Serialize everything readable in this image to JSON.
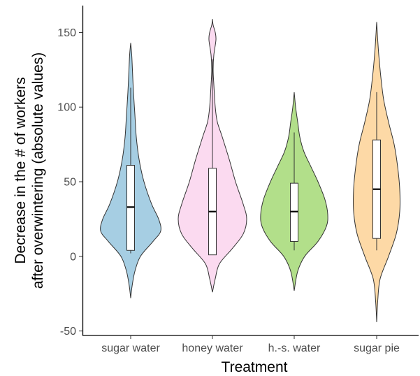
{
  "chart_data": {
    "type": "violin",
    "title": "",
    "xlabel": "Treatment",
    "ylabel_line1": "Decrease in the # of workers",
    "ylabel_line2": "after overwintering (absolute values)",
    "ylim": [
      -53,
      168
    ],
    "yticks": [
      -50,
      0,
      50,
      100,
      150
    ],
    "ytick_labels": [
      "-50",
      "0",
      "50",
      "100",
      "150"
    ],
    "legend": "none",
    "grid": false,
    "categories": [
      "sugar water",
      "honey water",
      "h.-s. water",
      "sugar pie"
    ],
    "series": [
      {
        "category": "sugar water",
        "color": "#a6cee3",
        "density": [
          [
            -28,
            0
          ],
          [
            -20,
            2
          ],
          [
            -10,
            6
          ],
          [
            0,
            14
          ],
          [
            10,
            32
          ],
          [
            17,
            43
          ],
          [
            25,
            40
          ],
          [
            35,
            30
          ],
          [
            50,
            19
          ],
          [
            65,
            12
          ],
          [
            80,
            8
          ],
          [
            95,
            6
          ],
          [
            110,
            4
          ],
          [
            125,
            2.5
          ],
          [
            135,
            1.5
          ],
          [
            143,
            0
          ]
        ],
        "box": {
          "q1": 4,
          "median": 33,
          "q3": 61,
          "whisker_low": 2,
          "whisker_high": 113
        }
      },
      {
        "category": "honey water",
        "color": "#fbdaf0",
        "density": [
          [
            -24,
            0
          ],
          [
            -15,
            4
          ],
          [
            -5,
            10
          ],
          [
            5,
            28
          ],
          [
            15,
            44
          ],
          [
            25,
            49
          ],
          [
            35,
            44
          ],
          [
            50,
            33
          ],
          [
            65,
            24
          ],
          [
            80,
            14
          ],
          [
            90,
            7
          ],
          [
            100,
            4
          ],
          [
            115,
            2
          ],
          [
            125,
            1
          ],
          [
            135,
            2
          ],
          [
            145,
            5
          ],
          [
            150,
            4
          ],
          [
            155,
            1
          ],
          [
            159,
            0
          ]
        ],
        "box": {
          "q1": 1,
          "median": 30,
          "q3": 59,
          "whisker_low": 1,
          "whisker_high": 132
        }
      },
      {
        "category": "h.-s. water",
        "color": "#b2df8a",
        "density": [
          [
            -23,
            0
          ],
          [
            -10,
            5
          ],
          [
            0,
            15
          ],
          [
            10,
            34
          ],
          [
            20,
            46
          ],
          [
            28,
            48
          ],
          [
            38,
            44
          ],
          [
            50,
            34
          ],
          [
            60,
            24
          ],
          [
            70,
            14
          ],
          [
            80,
            8
          ],
          [
            90,
            5
          ],
          [
            100,
            2
          ],
          [
            110,
            0
          ]
        ],
        "box": {
          "q1": 10,
          "median": 30,
          "q3": 49,
          "whisker_low": 4,
          "whisker_high": 83
        }
      },
      {
        "category": "sugar pie",
        "color": "#fdd9a6",
        "density": [
          [
            -44,
            0
          ],
          [
            -30,
            1.5
          ],
          [
            -15,
            5
          ],
          [
            0,
            17
          ],
          [
            15,
            28
          ],
          [
            30,
            33
          ],
          [
            45,
            33
          ],
          [
            60,
            30
          ],
          [
            75,
            25
          ],
          [
            90,
            17
          ],
          [
            105,
            10
          ],
          [
            120,
            6
          ],
          [
            135,
            3
          ],
          [
            145,
            1.5
          ],
          [
            157,
            0
          ]
        ],
        "box": {
          "q1": 12,
          "median": 45,
          "q3": 78,
          "whisker_low": 4,
          "whisker_high": 110
        }
      }
    ]
  }
}
